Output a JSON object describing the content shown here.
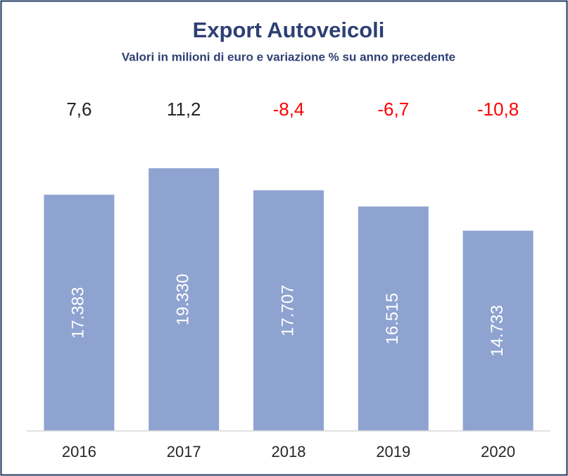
{
  "chart_data": {
    "type": "bar",
    "title": "Export Autoveicoli",
    "subtitle": "Valori in milioni di euro e variazione % su anno precedente",
    "categories": [
      "2016",
      "2017",
      "2018",
      "2019",
      "2020"
    ],
    "values": [
      17383,
      19330,
      17707,
      16515,
      14733
    ],
    "value_labels": [
      "17.383",
      "19.330",
      "17.707",
      "16.515",
      "14.733"
    ],
    "color": "#8fa3d1",
    "ylim": [
      0,
      20000
    ],
    "annotations": {
      "values": [
        7.6,
        11.2,
        -8.4,
        -6.7,
        -10.8
      ],
      "value_labels": [
        "7,6",
        "11,2",
        "-8,4",
        "-6,7",
        "-10,8"
      ],
      "positive_color": "#262626",
      "negative_color": "#ff0000"
    }
  }
}
